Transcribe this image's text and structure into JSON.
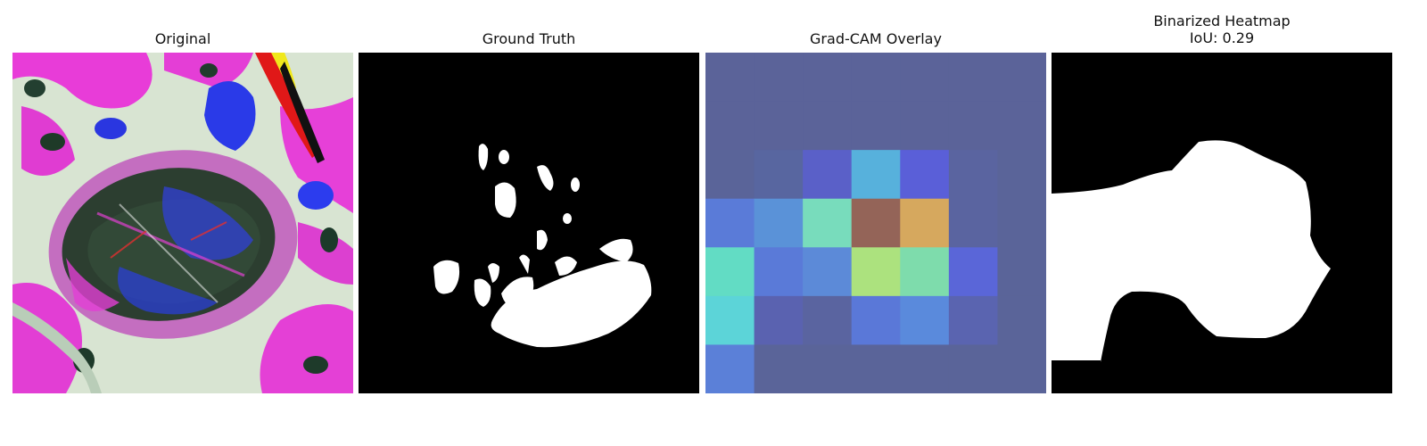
{
  "figure": {
    "panels": [
      {
        "title": "Original",
        "content": "leaf-photo"
      },
      {
        "title": "Ground Truth",
        "content": "lesion-mask"
      },
      {
        "title": "Grad-CAM Overlay",
        "content": "heatmap-overlay"
      },
      {
        "title": "Binarized Heatmap\nIoU: 0.29",
        "content": "binary-mask"
      }
    ],
    "colors": {
      "background": "#ffffff",
      "mask_foreground": "#ffffff",
      "mask_background": "#000000",
      "overlay_base": "#5a6499"
    },
    "gradcam_grid": {
      "rows": 7,
      "cols": 7,
      "cells": [
        [
          "#5b6399",
          "#5b6399",
          "#5b6399",
          "#5b6399",
          "#5b6399",
          "#5b6399",
          "#5b6399"
        ],
        [
          "#5b6399",
          "#5b6399",
          "#5b6399",
          "#5b6399",
          "#5b6399",
          "#5b6399",
          "#5b6399"
        ],
        [
          "#5a6499",
          "#5866a0",
          "#5a60c8",
          "#57b1dc",
          "#5a5fd8",
          "#5a64a0",
          "#5a6499"
        ],
        [
          "#5a7bd8",
          "#5a92d8",
          "#78dcbc",
          "#946458",
          "#d6a85e",
          "#5a64a0",
          "#5a6499"
        ],
        [
          "#62dcc4",
          "#5a7ad8",
          "#5c8ad8",
          "#ace27e",
          "#7edcac",
          "#5a66d8",
          "#5a6499"
        ],
        [
          "#5cd4d8",
          "#5a62b0",
          "#5a64a0",
          "#5a78d8",
          "#5a8adc",
          "#5a64b0",
          "#5a6499"
        ],
        [
          "#5b80d8",
          "#5a6499",
          "#5a6499",
          "#5a6499",
          "#5a6499",
          "#5a6499",
          "#5a6499"
        ]
      ]
    }
  }
}
